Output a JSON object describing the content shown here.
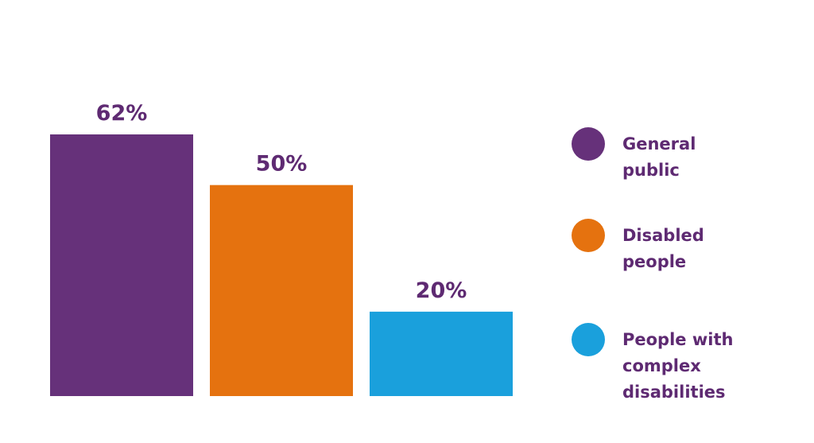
{
  "chart_data": {
    "type": "bar",
    "series": [
      {
        "name": "General public",
        "color": "#66317a",
        "values": [
          62
        ],
        "value_labels": [
          "62%"
        ]
      },
      {
        "name": "Disabled people",
        "color": "#e5720f",
        "values": [
          50
        ],
        "value_labels": [
          "50%"
        ]
      },
      {
        "name": "People with complex disabilities",
        "color": "#1aa0dc",
        "values": [
          20
        ],
        "value_labels": [
          "20%"
        ]
      }
    ],
    "ylim": [
      0,
      62
    ]
  }
}
